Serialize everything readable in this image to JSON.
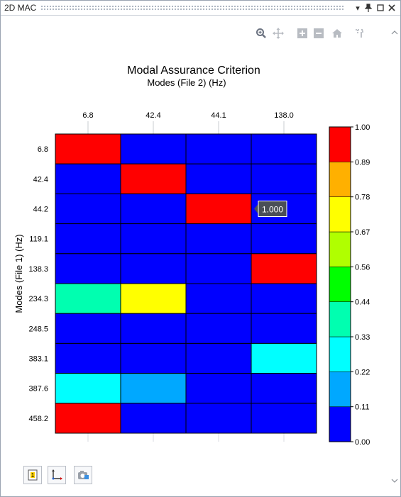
{
  "window": {
    "title": "2D MAC",
    "buttons": {
      "dropdown": "▾",
      "pin": "📌",
      "restore": "☐",
      "close": "✕"
    }
  },
  "toolbar": {
    "icons": [
      "zoom-icon",
      "pan-icon",
      "zoom-in-icon",
      "zoom-out-icon",
      "home-icon",
      "datatip-icon"
    ]
  },
  "bottom_buttons": [
    "mode-number-button",
    "axes-button",
    "snapshot-button"
  ],
  "chart_data": {
    "type": "heatmap",
    "title": "Modal Assurance Criterion",
    "xlabel": "Modes (File 2) (Hz)",
    "ylabel": "Modes (File 1) (Hz)",
    "x_ticks": [
      "6.8",
      "42.4",
      "44.1",
      "138.0"
    ],
    "y_ticks": [
      "6.8",
      "42.4",
      "44.2",
      "119.1",
      "138.3",
      "234.3",
      "248.5",
      "383.1",
      "387.6",
      "458.2"
    ],
    "values": [
      [
        1.0,
        0.0,
        0.0,
        0.0
      ],
      [
        0.0,
        1.0,
        0.0,
        0.0
      ],
      [
        0.0,
        0.0,
        1.0,
        0.0
      ],
      [
        0.0,
        0.0,
        0.0,
        0.0
      ],
      [
        0.0,
        0.0,
        0.0,
        1.0
      ],
      [
        0.38,
        0.7,
        0.0,
        0.0
      ],
      [
        0.0,
        0.0,
        0.0,
        0.0
      ],
      [
        0.0,
        0.0,
        0.0,
        0.28
      ],
      [
        0.27,
        0.17,
        0.0,
        0.0
      ],
      [
        1.0,
        0.0,
        0.0,
        0.0
      ]
    ],
    "colorbar": {
      "ticks": [
        "1.00",
        "0.89",
        "0.78",
        "0.67",
        "0.56",
        "0.44",
        "0.33",
        "0.22",
        "0.11",
        "0.00"
      ],
      "colors": [
        "#0000ff",
        "#00a8ff",
        "#00ffff",
        "#00ffb0",
        "#00ff00",
        "#b0ff00",
        "#ffff00",
        "#ffb000",
        "#ff0000"
      ],
      "range": [
        0,
        1
      ]
    },
    "tooltip": {
      "text": "1.000",
      "row": 2,
      "col": 2
    }
  }
}
